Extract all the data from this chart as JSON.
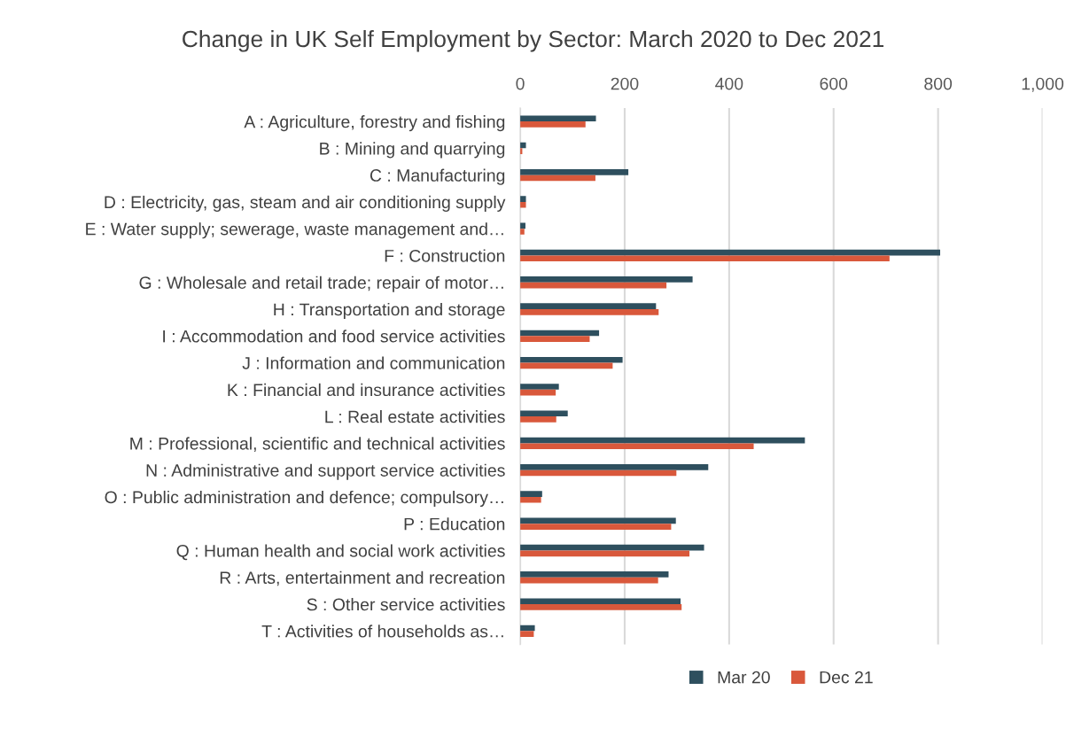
{
  "chart_data": {
    "type": "bar",
    "orientation": "horizontal",
    "title": "Change in UK Self Employment by Sector: March 2020 to Dec 2021",
    "categories": [
      "A : Agriculture, forestry and fishing",
      "B : Mining and quarrying",
      "C : Manufacturing",
      "D : Electricity, gas, steam and air conditioning supply",
      "E : Water supply; sewerage, waste management and…",
      "F : Construction",
      "G : Wholesale and retail trade; repair of motor…",
      "H : Transportation and storage",
      "I : Accommodation and food service activities",
      "J : Information and communication",
      "K : Financial and insurance activities",
      "L : Real estate activities",
      "M : Professional, scientific and technical activities",
      "N : Administrative and support service activities",
      "O : Public administration and defence; compulsory…",
      "P : Education",
      "Q : Human health and social work activities",
      "R : Arts, entertainment and recreation",
      "S : Other service activities",
      "T : Activities of households as…"
    ],
    "series": [
      {
        "name": "Mar 20",
        "color": "#2e4f5e",
        "values": [
          145,
          11,
          207,
          11,
          10,
          804,
          330,
          260,
          151,
          196,
          74,
          91,
          545,
          360,
          42,
          298,
          352,
          284,
          307,
          28
        ]
      },
      {
        "name": "Dec 21",
        "color": "#d9583b",
        "values": [
          125,
          4,
          144,
          11,
          8,
          707,
          280,
          265,
          133,
          177,
          68,
          69,
          447,
          299,
          40,
          289,
          324,
          264,
          309,
          26
        ]
      }
    ],
    "xlim": [
      0,
      1000
    ],
    "xticks": [
      0,
      200,
      400,
      600,
      800,
      {
        "value": 1000,
        "label": "1,000"
      }
    ],
    "grid": "x",
    "legend": "bottom"
  }
}
